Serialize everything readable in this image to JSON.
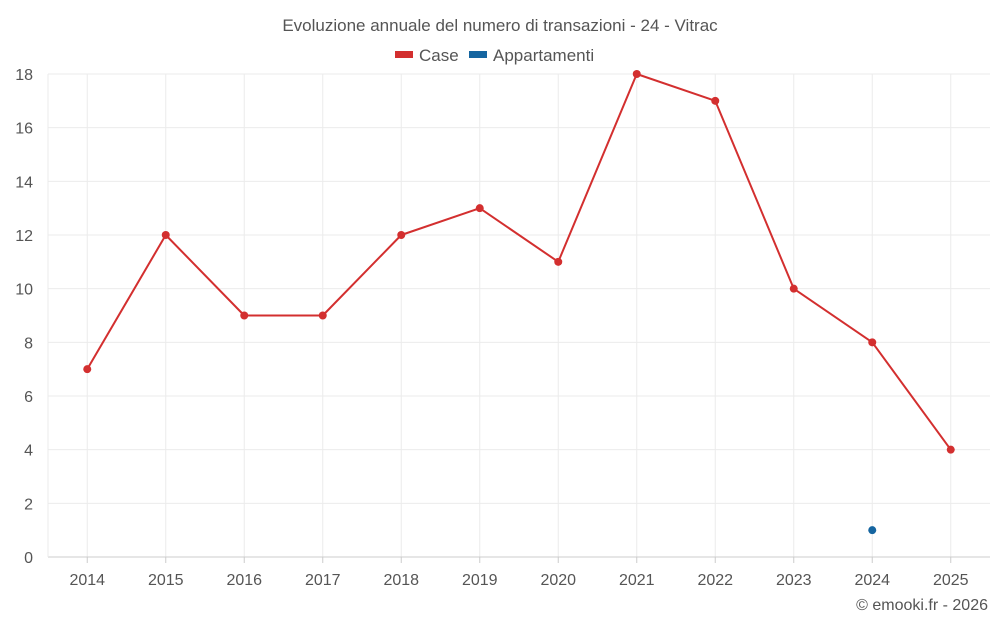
{
  "chart_data": {
    "type": "line",
    "title": "Evoluzione annuale del numero di transazioni - 24 - Vitrac",
    "categories": [
      "2014",
      "2015",
      "2016",
      "2017",
      "2018",
      "2019",
      "2020",
      "2021",
      "2022",
      "2023",
      "2024",
      "2025"
    ],
    "ylim": [
      0,
      18
    ],
    "yticks": [
      0,
      2,
      4,
      6,
      8,
      10,
      12,
      14,
      16,
      18
    ],
    "grid": true,
    "legend_position": "top-center",
    "series": [
      {
        "name": "Case",
        "color": "#d32f2f",
        "values": [
          7,
          12,
          9,
          9,
          12,
          13,
          11,
          18,
          17,
          10,
          8,
          4
        ]
      },
      {
        "name": "Appartamenti",
        "color": "#1565a0",
        "values": [
          null,
          null,
          null,
          null,
          null,
          null,
          null,
          null,
          null,
          null,
          1,
          null
        ]
      }
    ],
    "xlabel": "",
    "ylabel": ""
  },
  "credit": "© emooki.fr - 2026"
}
